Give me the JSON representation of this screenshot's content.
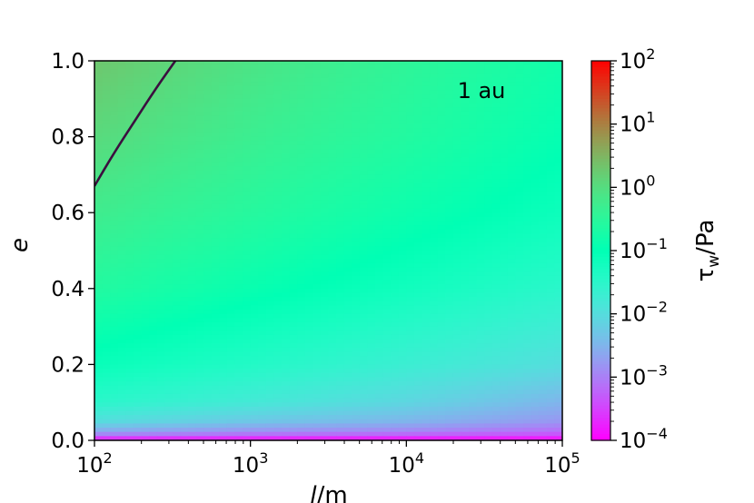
{
  "chart_data": {
    "type": "heatmap",
    "title": "",
    "annotation": "1 au",
    "xlabel_sym": "l",
    "xlabel_unit": "/m",
    "ylabel": "e",
    "x_scale": "log",
    "xlim": [
      100,
      100000
    ],
    "ylim": [
      0.0,
      1.0
    ],
    "x_ticks": [
      {
        "value": 100,
        "base": "10",
        "exp": "2"
      },
      {
        "value": 1000,
        "base": "10",
        "exp": "3"
      },
      {
        "value": 10000,
        "base": "10",
        "exp": "4"
      },
      {
        "value": 100000,
        "base": "10",
        "exp": "5"
      }
    ],
    "y_ticks": [
      {
        "value": 0.0,
        "label": "0.0"
      },
      {
        "value": 0.2,
        "label": "0.2"
      },
      {
        "value": 0.4,
        "label": "0.4"
      },
      {
        "value": 0.6,
        "label": "0.6"
      },
      {
        "value": 0.8,
        "label": "0.8"
      },
      {
        "value": 1.0,
        "label": "1.0"
      }
    ],
    "colorbar": {
      "label_sym": "τ",
      "label_sub": "w",
      "label_unit": "/Pa",
      "scale": "log",
      "range": [
        0.0001,
        100
      ],
      "colormap": "rainbow",
      "ticks": [
        {
          "value": 0.0001,
          "base": "10",
          "exp": "−4"
        },
        {
          "value": 0.001,
          "base": "10",
          "exp": "−3"
        },
        {
          "value": 0.01,
          "base": "10",
          "exp": "−2"
        },
        {
          "value": 0.1,
          "base": "10",
          "exp": "−1"
        },
        {
          "value": 1,
          "base": "10",
          "exp": "0"
        },
        {
          "value": 10,
          "base": "10",
          "exp": "1"
        },
        {
          "value": 100,
          "base": "10",
          "exp": "2"
        }
      ]
    },
    "contour": {
      "level": 1,
      "color": "#3b0f3f",
      "points": [
        {
          "x": 100,
          "y": 0.67
        },
        {
          "x": 130,
          "y": 0.75
        },
        {
          "x": 180,
          "y": 0.84
        },
        {
          "x": 250,
          "y": 0.93
        },
        {
          "x": 330,
          "y": 1.0
        }
      ]
    },
    "field": {
      "description_grid": "log10 tau at (log10 l, e)",
      "x": [
        100,
        1000,
        10000,
        100000
      ],
      "e": [
        0.0,
        0.02,
        0.05,
        0.1,
        0.2,
        0.4,
        0.6,
        0.8,
        1.0
      ],
      "log_tau": [
        [
          -3.9,
          -3.95,
          -4.0,
          -4.0
        ],
        [
          -2.7,
          -2.9,
          -3.0,
          -3.2
        ],
        [
          -2.0,
          -2.3,
          -2.5,
          -2.8
        ],
        [
          -1.5,
          -1.8,
          -2.1,
          -2.5
        ],
        [
          -1.1,
          -1.4,
          -1.7,
          -2.0
        ],
        [
          -0.6,
          -0.9,
          -1.2,
          -1.5
        ],
        [
          -0.25,
          -0.55,
          -0.85,
          -1.15
        ],
        [
          0.05,
          -0.3,
          -0.6,
          -0.95
        ],
        [
          0.3,
          -0.1,
          -0.45,
          -0.8
        ]
      ]
    }
  }
}
